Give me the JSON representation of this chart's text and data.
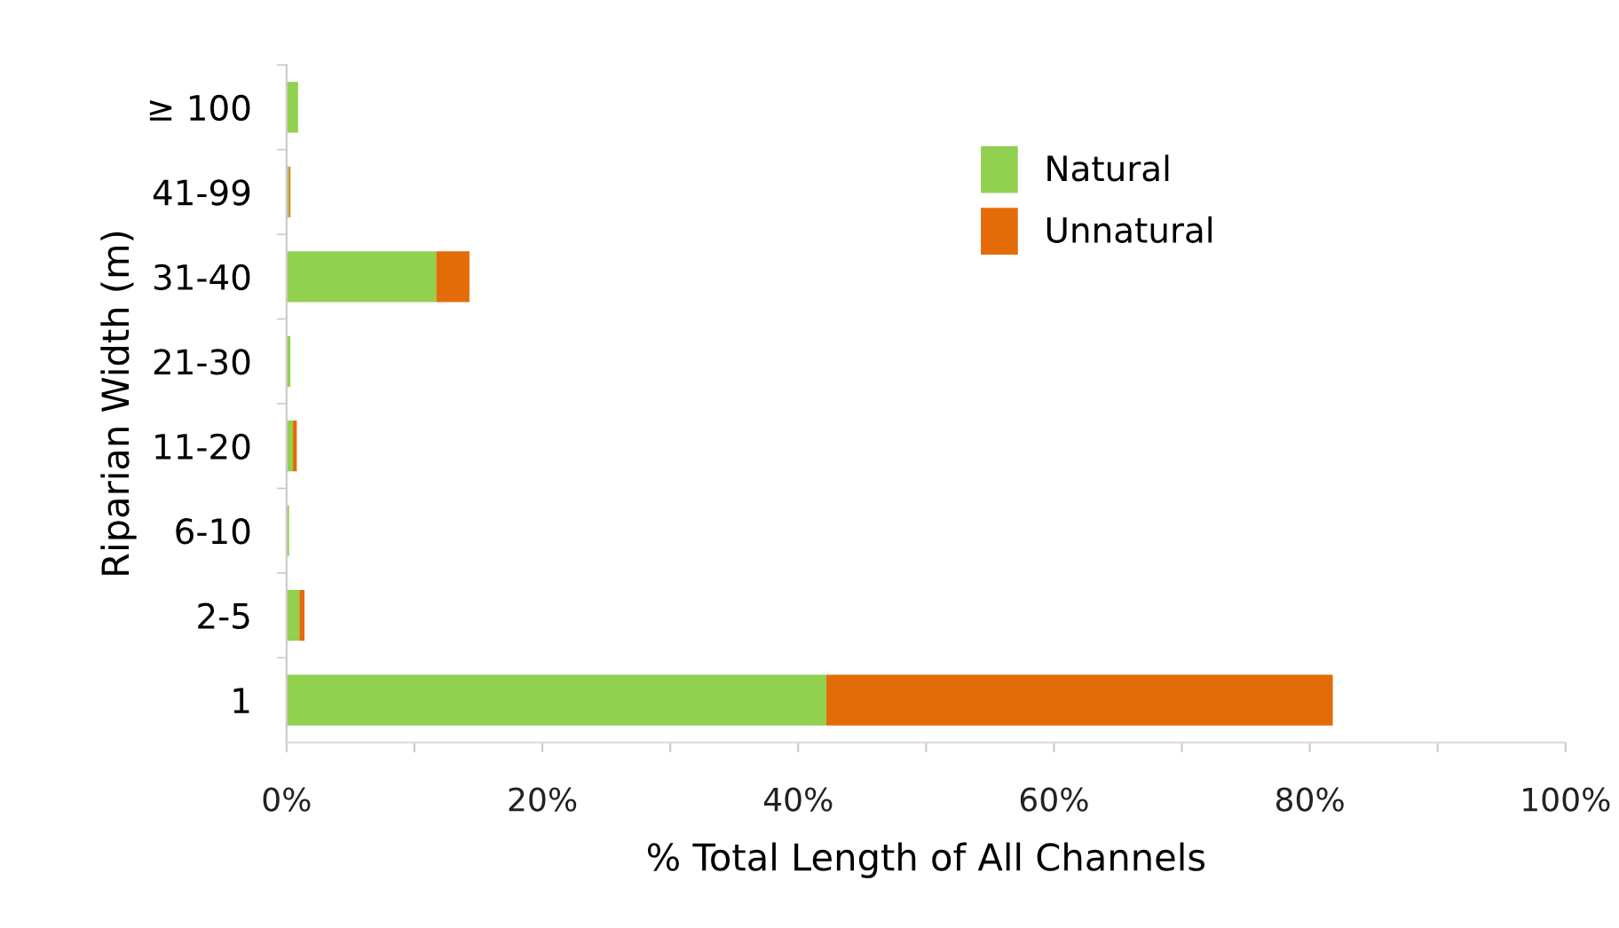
{
  "chart_data": {
    "type": "bar",
    "orientation": "horizontal",
    "stacked": true,
    "xlabel": "% Total Length of All Channels",
    "ylabel": "Riparian Width (m)",
    "categories": [
      "≥ 100",
      "41-99",
      "31-40",
      "21-30",
      "11-20",
      "6-10",
      "2-5",
      "1"
    ],
    "series": [
      {
        "name": "Natural",
        "color": "#92d050",
        "values": [
          0.9,
          0.2,
          11.7,
          0.3,
          0.5,
          0.2,
          1.0,
          42.2
        ]
      },
      {
        "name": "Unnatural",
        "color": "#e36c09",
        "values": [
          0.0,
          0.1,
          2.6,
          0.0,
          0.3,
          0.0,
          0.4,
          39.6
        ]
      }
    ],
    "xlim": [
      0,
      100
    ],
    "xticks": [
      {
        "value": 0,
        "label": "0%"
      },
      {
        "value": 10,
        "label": null
      },
      {
        "value": 20,
        "label": "20%"
      },
      {
        "value": 30,
        "label": null
      },
      {
        "value": 40,
        "label": "40%"
      },
      {
        "value": 50,
        "label": null
      },
      {
        "value": 60,
        "label": "60%"
      },
      {
        "value": 70,
        "label": null
      },
      {
        "value": 80,
        "label": "80%"
      },
      {
        "value": 90,
        "label": null
      },
      {
        "value": 100,
        "label": "100%"
      }
    ],
    "legend": "right",
    "grid": false
  }
}
